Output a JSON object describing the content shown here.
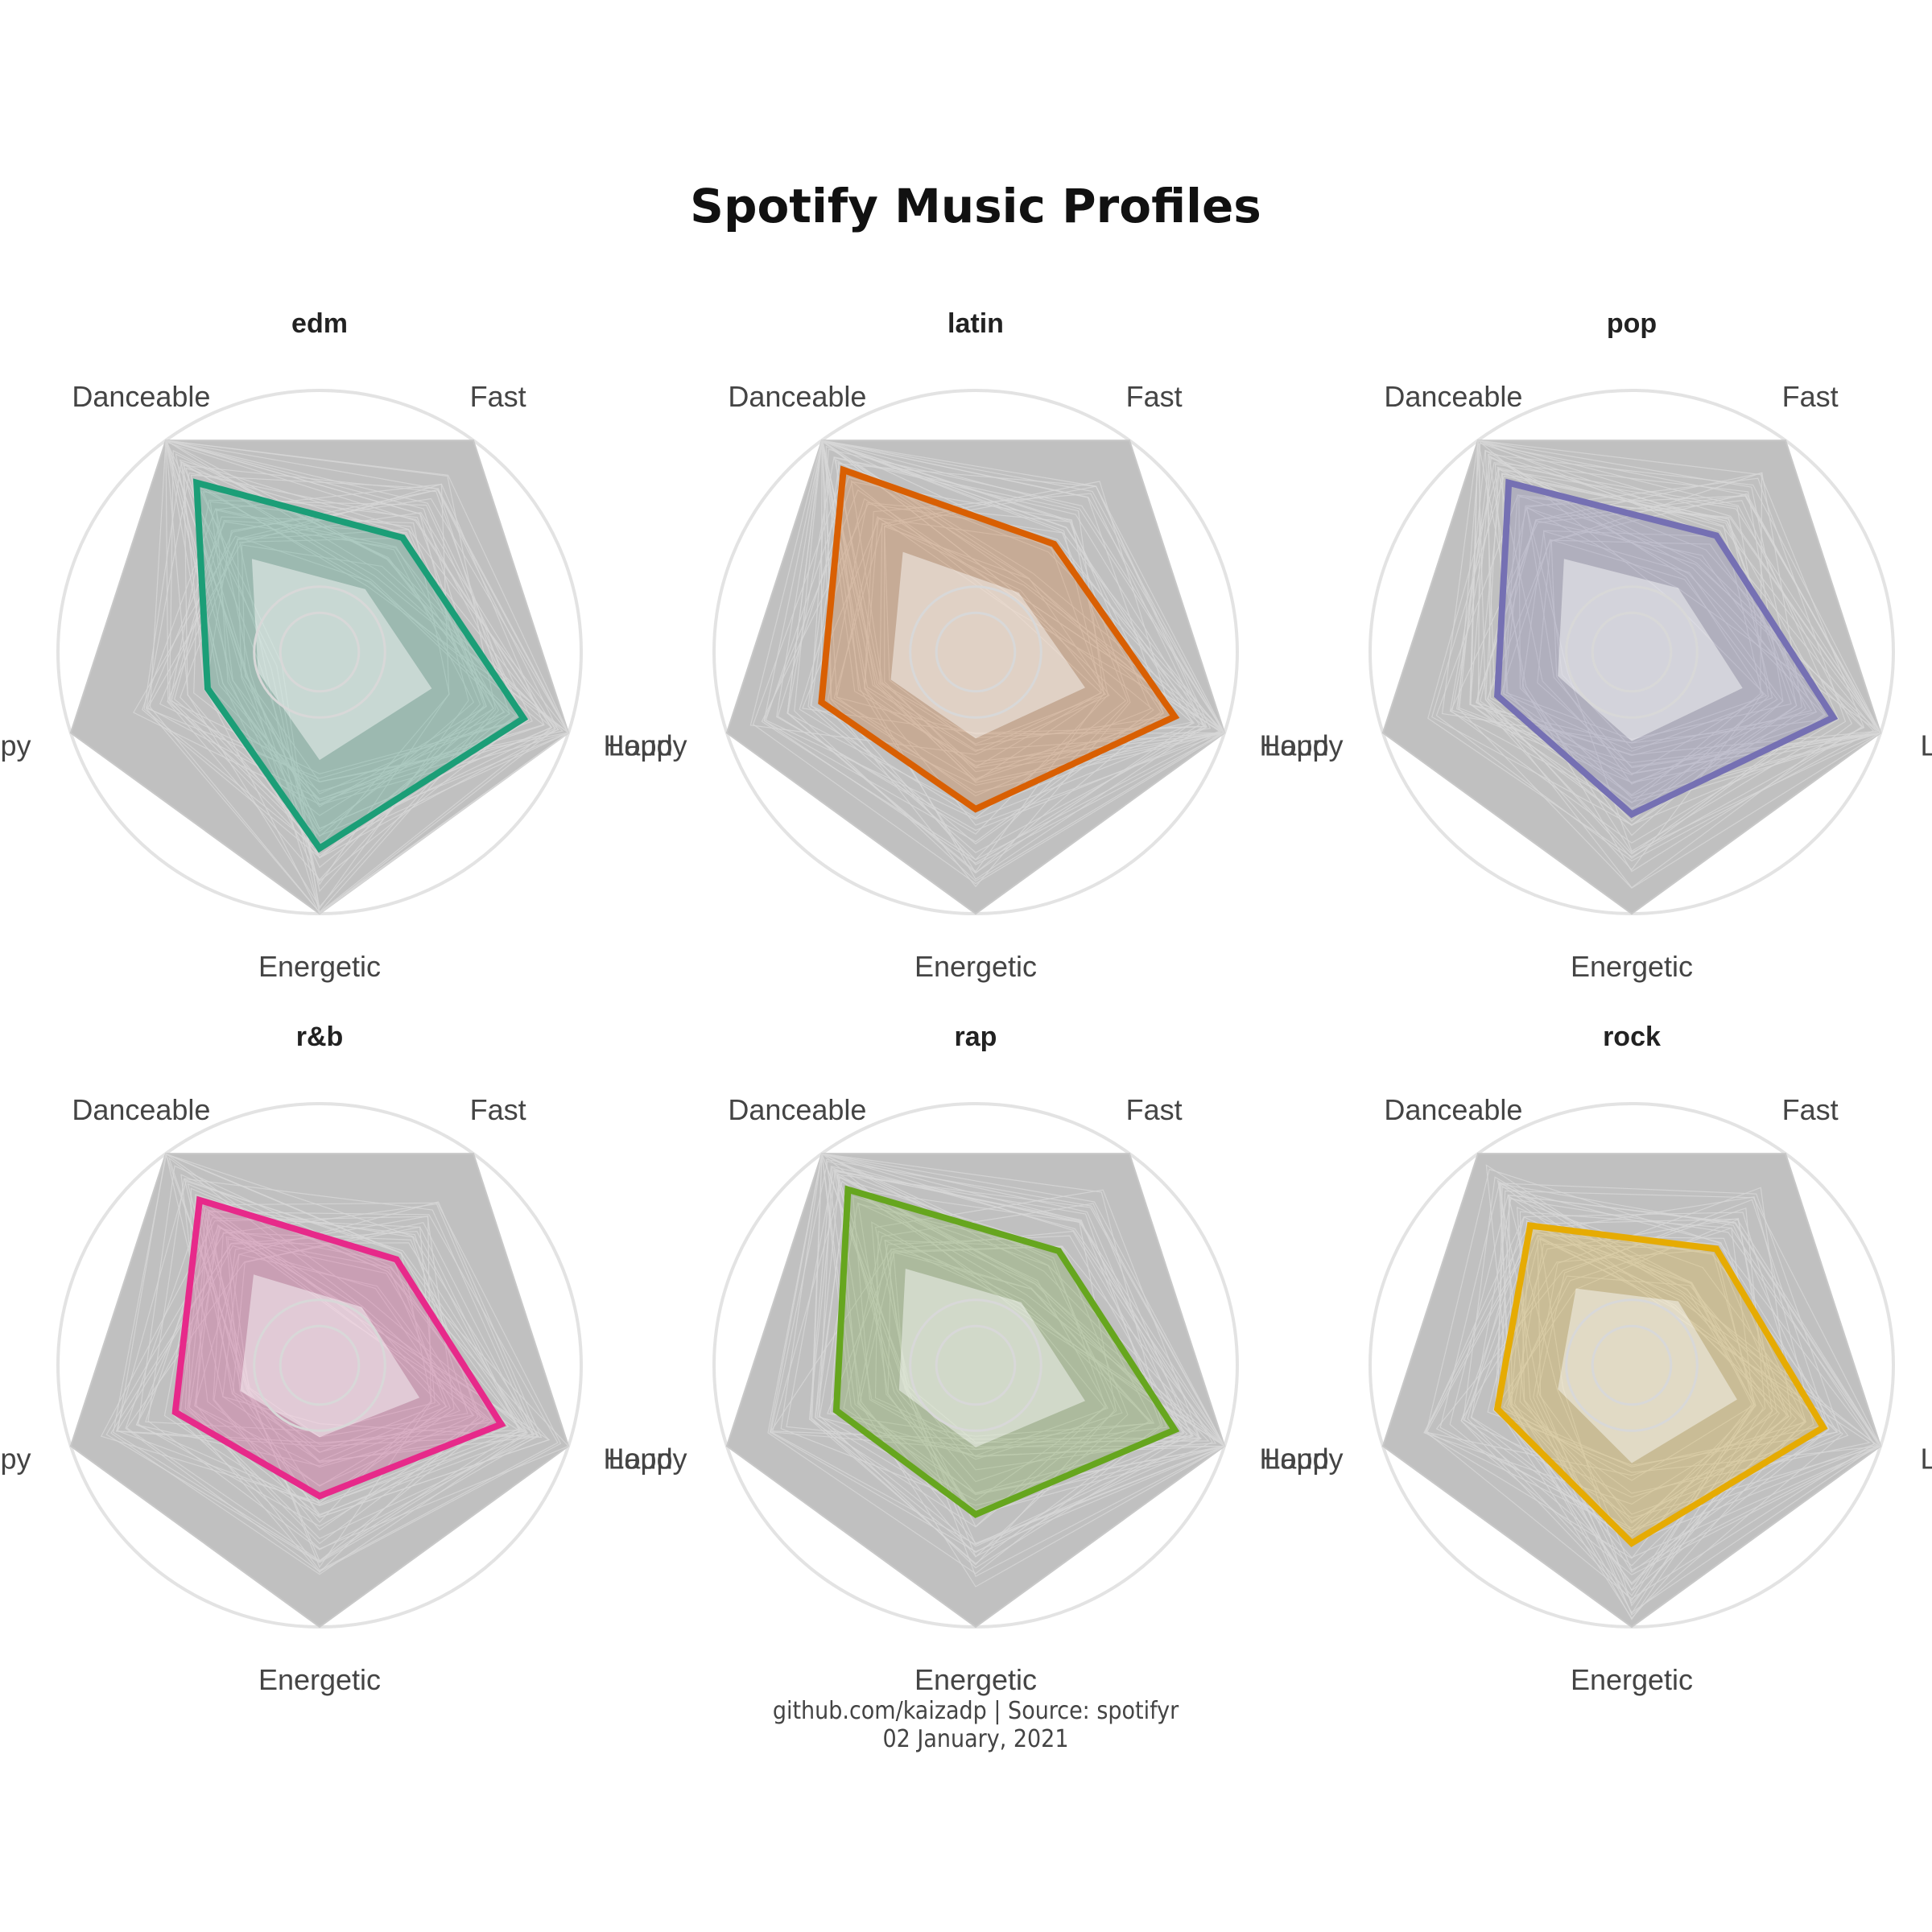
{
  "chart_data": {
    "type": "radar",
    "title": "Spotify Music Profiles",
    "caption_line1": "github.com/kaizadp | Source: spotifyr",
    "caption_line2": "02 January, 2021",
    "axes": [
      "Loud",
      "Fast",
      "Danceable",
      "Happy",
      "Energetic"
    ],
    "range": [
      0,
      1
    ],
    "grid_levels": [
      0.25,
      0.5,
      0.75,
      1.0
    ],
    "range_fill_color": "#c0c0c0",
    "grid_color": "#e3e3e3",
    "panels": [
      {
        "name": "edm",
        "color": "#1b9e77",
        "values": [
          0.82,
          0.54,
          0.8,
          0.45,
          0.75
        ]
      },
      {
        "name": "latin",
        "color": "#d95f02",
        "values": [
          0.8,
          0.51,
          0.86,
          0.62,
          0.6
        ]
      },
      {
        "name": "pop",
        "color": "#7570b3",
        "values": [
          0.81,
          0.55,
          0.8,
          0.54,
          0.62
        ]
      },
      {
        "name": "r&b",
        "color": "#e7298a",
        "values": [
          0.73,
          0.5,
          0.78,
          0.58,
          0.5
        ]
      },
      {
        "name": "rap",
        "color": "#66a61e",
        "values": [
          0.8,
          0.54,
          0.83,
          0.56,
          0.57
        ]
      },
      {
        "name": "rock",
        "color": "#e6ab02",
        "values": [
          0.77,
          0.55,
          0.66,
          0.54,
          0.68
        ]
      }
    ]
  }
}
